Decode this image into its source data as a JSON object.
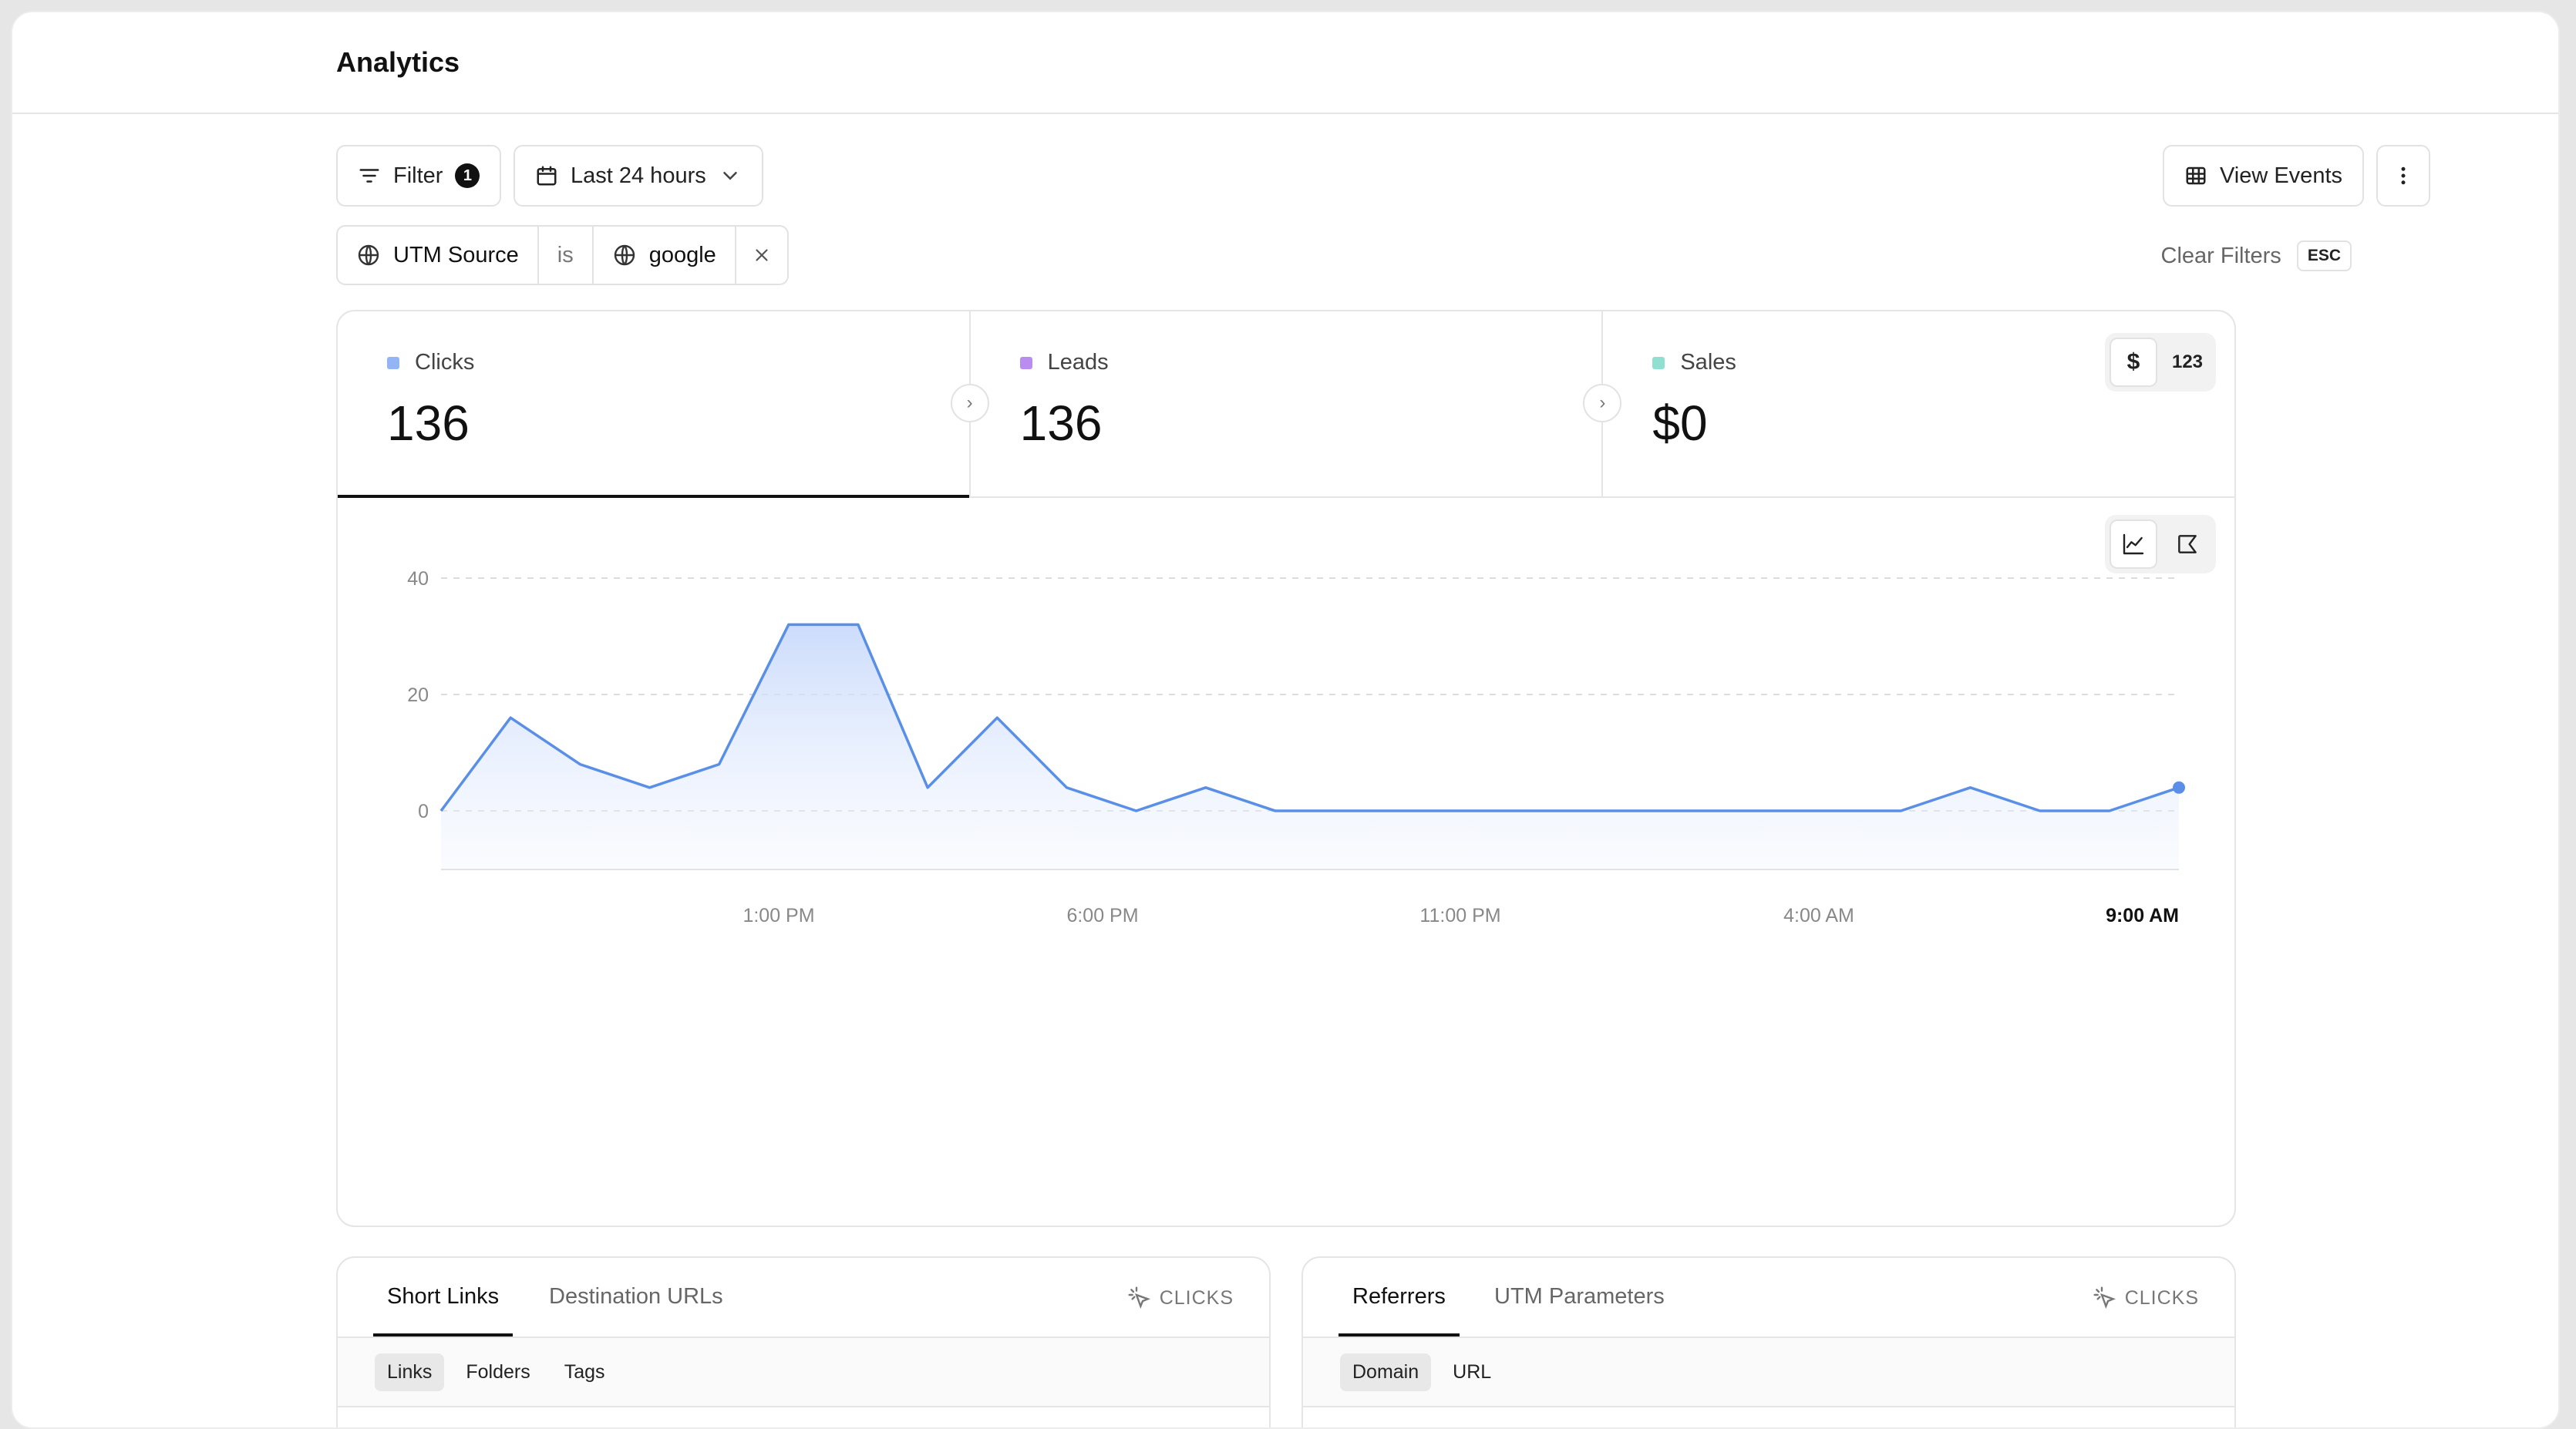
{
  "header": {
    "title": "Analytics"
  },
  "toolbar": {
    "filter_label": "Filter",
    "filter_count": "1",
    "date_range": "Last 24 hours",
    "view_events": "View Events"
  },
  "active_filter": {
    "field": "UTM Source",
    "operator": "is",
    "value": "google"
  },
  "clear_filters": {
    "label": "Clear Filters",
    "shortcut": "ESC"
  },
  "metrics": [
    {
      "label": "Clicks",
      "value": "136",
      "color": "#93b4f5"
    },
    {
      "label": "Leads",
      "value": "136",
      "color": "#b98cf0"
    },
    {
      "label": "Sales",
      "value": "$0",
      "color": "#8fe0d0"
    }
  ],
  "sales_unit_toggle": {
    "currency": "$",
    "count": "123"
  },
  "chart_data": {
    "type": "area",
    "series": [
      {
        "values": [
          0,
          16,
          8,
          4,
          8,
          32,
          32,
          4,
          16,
          4,
          0,
          4,
          0,
          0,
          0,
          0,
          0,
          0,
          0,
          0,
          0,
          0,
          4,
          0,
          0,
          4
        ]
      }
    ],
    "ylim": [
      0,
      40
    ],
    "y_ticks": [
      "0",
      "20",
      "40"
    ],
    "x_ticks": [
      "1:00 PM",
      "6:00 PM",
      "11:00 PM",
      "4:00 AM",
      "9:00 AM"
    ],
    "line_color": "#5a8fe8",
    "grid": true
  },
  "panel_left": {
    "tabs": [
      "Short Links",
      "Destination URLs"
    ],
    "metric_label": "CLICKS",
    "subtabs": [
      "Links",
      "Folders",
      "Tags"
    ]
  },
  "panel_right": {
    "tabs": [
      "Referrers",
      "UTM Parameters"
    ],
    "metric_label": "CLICKS",
    "subtabs": [
      "Domain",
      "URL"
    ]
  }
}
